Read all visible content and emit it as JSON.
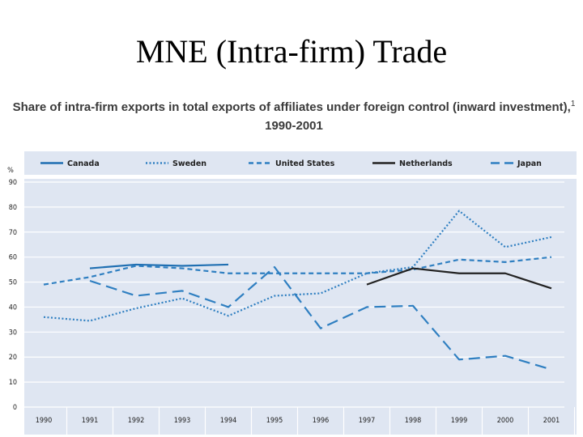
{
  "slide": {
    "title": "MNE (Intra-firm) Trade"
  },
  "chart_data": {
    "type": "line",
    "title": "Share of intra-firm exports in total exports of affiliates under foreign control (inward investment),",
    "title_superscript": "1",
    "subtitle": "1990-2001",
    "ylabel": "%",
    "xlabel": "",
    "ylim": [
      0,
      90
    ],
    "yticks": [
      0,
      10,
      20,
      30,
      40,
      50,
      60,
      70,
      80,
      90
    ],
    "categories": [
      "1990",
      "1991",
      "1992",
      "1993",
      "1994",
      "1995",
      "1996",
      "1997",
      "1998",
      "1999",
      "2000",
      "2001"
    ],
    "grid": true,
    "legend_position": "top",
    "series": [
      {
        "name": "Canada",
        "style": "solid",
        "color": "#1f6fb2",
        "values": [
          null,
          55.5,
          57,
          56.5,
          57,
          null,
          null,
          null,
          null,
          null,
          null,
          null
        ]
      },
      {
        "name": "Sweden",
        "style": "dotted",
        "color": "#2f7fc1",
        "values": [
          36,
          34.5,
          39.5,
          43.5,
          36.5,
          44.5,
          45.5,
          53.5,
          56,
          78.5,
          64,
          68
        ]
      },
      {
        "name": "United States",
        "style": "dashed",
        "color": "#2f7fc1",
        "values": [
          49,
          52,
          56.5,
          55.5,
          53.5,
          53.5,
          53.5,
          53.5,
          55,
          59,
          58,
          60
        ]
      },
      {
        "name": "Netherlands",
        "style": "solid",
        "color": "#222222",
        "values": [
          null,
          null,
          null,
          null,
          null,
          null,
          null,
          49,
          55.5,
          53.5,
          53.5,
          47.5
        ]
      },
      {
        "name": "Japan",
        "style": "longdash",
        "color": "#2f7fc1",
        "values": [
          null,
          50.5,
          44.5,
          46.5,
          40,
          56,
          31.5,
          40,
          40.5,
          19,
          20.5,
          15
        ]
      }
    ]
  }
}
